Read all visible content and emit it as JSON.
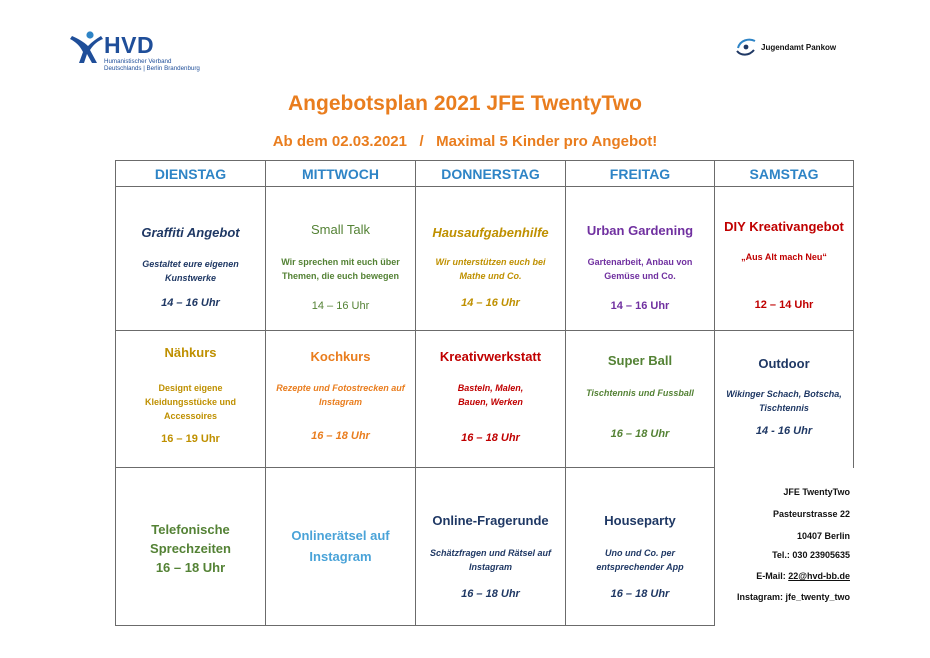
{
  "logos": {
    "hvd": {
      "abbr": "HVD",
      "line1": "Humanistischer Verband",
      "line2": "Deutschlands | Berlin Brandenburg"
    },
    "jugendamt": {
      "text": "Jugendamt Pankow"
    }
  },
  "title": "Angebotsplan 2021 JFE TwentyTwo",
  "subtitle": "Ab dem 02.03.2021   /   Maximal 5 Kinder pro Angebot!",
  "colors": {
    "title": "#e97d1e",
    "header": "#2e84c6",
    "navy": "#1f3864",
    "green": "#548235",
    "orange": "#e97d1e",
    "olive": "#bf9000",
    "purple": "#7030a0",
    "red": "#c00000",
    "lightblue": "#4aa3d8"
  },
  "days": [
    "DIENSTAG",
    "MITTWOCH",
    "DONNERSTAG",
    "FREITAG",
    "SAMSTAG"
  ],
  "row1": [
    {
      "title": "Graffiti Angebot",
      "desc": "Gestaltet eure eigenen Kunstwerke",
      "time": "14 – 16 Uhr"
    },
    {
      "title": "Small Talk",
      "desc": "Wir sprechen mit euch über Themen, die euch bewegen",
      "time": "14 – 16 Uhr"
    },
    {
      "title": "Hausaufgabenhilfe",
      "desc": "Wir unterstützen euch bei Mathe und Co.",
      "time": "14 – 16 Uhr"
    },
    {
      "title": "Urban Gardening",
      "desc": "Gartenarbeit, Anbau von Gemüse und Co.",
      "time": "14 – 16 Uhr"
    },
    {
      "title": "DIY Kreativangebot",
      "desc": "„Aus Alt mach Neu“",
      "time": "12 – 14 Uhr"
    }
  ],
  "row2": [
    {
      "title": "Nähkurs",
      "desc": "Designt eigene Kleidungsstücke und Accessoires",
      "time": "16 – 19 Uhr"
    },
    {
      "title": "Kochkurs",
      "desc": "Rezepte und Fotostrecken auf Instagram",
      "time": "16 – 18 Uhr"
    },
    {
      "title": "Kreativwerkstatt",
      "desc": "Basteln, Malen, Bauen, Werken",
      "time": "16 – 18 Uhr"
    },
    {
      "title": "Super Ball",
      "desc": "Tischtennis und Fussball",
      "time": "16 – 18 Uhr"
    },
    {
      "title": "Outdoor",
      "desc": "Wikinger Schach, Botscha, Tischtennis",
      "time": "14 - 16 Uhr"
    }
  ],
  "row3": [
    {
      "lines": [
        "Telefonische",
        "Sprechzeiten",
        "16 – 18 Uhr"
      ]
    },
    {
      "lines": [
        "Onlinerätsel auf",
        "Instagram"
      ]
    },
    {
      "title": "Online-Fragerunde",
      "desc": "Schätzfragen und Rätsel auf Instagram",
      "time": "16 – 18 Uhr"
    },
    {
      "title": "Houseparty",
      "desc": "Uno und Co. per entsprechender App",
      "time": "16 – 18 Uhr"
    }
  ],
  "contact": {
    "name": "JFE TwentyTwo",
    "street": "Pasteurstrasse 22",
    "city": "10407 Berlin",
    "tel": "Tel.: 030 23905635",
    "email_label": "E-Mail: ",
    "email": "22@hvd-bb.de",
    "instagram": "Instagram: jfe_twenty_two"
  }
}
